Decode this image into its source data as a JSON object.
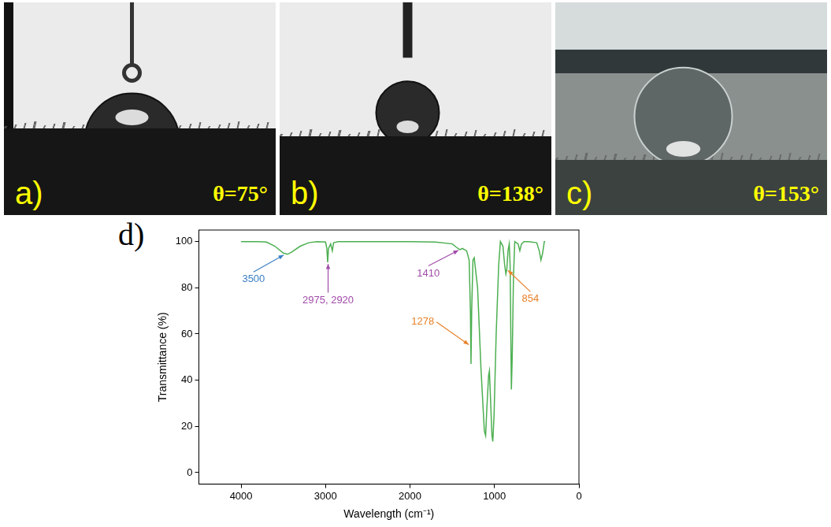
{
  "panels": [
    {
      "letter": "a)",
      "label": "θ=75°",
      "contact_angle": 75
    },
    {
      "letter": "b)",
      "label": "θ=138°",
      "contact_angle": 138
    },
    {
      "letter": "c)",
      "label": "θ=153°",
      "contact_angle": 153
    }
  ],
  "chart_data": {
    "letter": "d)",
    "type": "line",
    "x_label": "Wavelength (cm⁻¹)",
    "y_label": "Transmittance (%)",
    "x": [
      4000,
      3800,
      3700,
      3600,
      3500,
      3450,
      3400,
      3300,
      3200,
      3100,
      3000,
      2985,
      2975,
      2965,
      2940,
      2920,
      2905,
      2850,
      2500,
      2000,
      1700,
      1500,
      1450,
      1410,
      1380,
      1330,
      1300,
      1285,
      1278,
      1270,
      1255,
      1240,
      1200,
      1160,
      1120,
      1105,
      1090,
      1070,
      1060,
      1045,
      1030,
      1020,
      1005,
      980,
      950,
      930,
      900,
      880,
      865,
      854,
      840,
      825,
      815,
      800,
      790,
      775,
      760,
      720,
      700,
      680,
      650,
      600,
      500,
      470,
      450,
      430,
      410,
      400
    ],
    "series": [
      {
        "color": "#4caf50",
        "values": [
          100,
          100,
          99.8,
          98,
          95,
          94.5,
          95.5,
          98,
          99.5,
          100,
          99.8,
          97,
          91,
          97,
          99,
          96,
          99.5,
          100,
          100,
          100,
          99.8,
          99,
          97.5,
          96.5,
          97,
          96,
          92,
          70,
          47,
          70,
          92,
          93,
          80,
          45,
          18,
          16,
          28,
          42,
          44,
          30,
          16,
          13.5,
          25,
          60,
          90,
          100,
          98,
          90,
          86,
          88,
          96,
          99,
          90,
          36,
          50,
          85,
          100,
          99,
          96,
          99,
          100,
          100,
          99.5,
          96,
          92,
          95,
          100,
          100
        ]
      }
    ],
    "xlim": [
      4500,
      0
    ],
    "ylim": [
      -5,
      105
    ],
    "xticks": [
      4000,
      3000,
      2000,
      1000,
      0
    ],
    "yticks": [
      0,
      20,
      40,
      60,
      80,
      100
    ],
    "grid": false,
    "annotations": [
      {
        "text": "3500",
        "x": 3480,
        "y": 94.5,
        "color": "#3b7fc4"
      },
      {
        "text": "2975, 2920",
        "x": 2970,
        "y": 91,
        "color": "#a04ca8"
      },
      {
        "text": "1410",
        "x": 1410,
        "y": 96.5,
        "color": "#a04ca8"
      },
      {
        "text": "1278",
        "x": 1290,
        "y": 55,
        "color": "#e8822a"
      },
      {
        "text": "854",
        "x": 854,
        "y": 88,
        "color": "#e8822a"
      }
    ]
  }
}
